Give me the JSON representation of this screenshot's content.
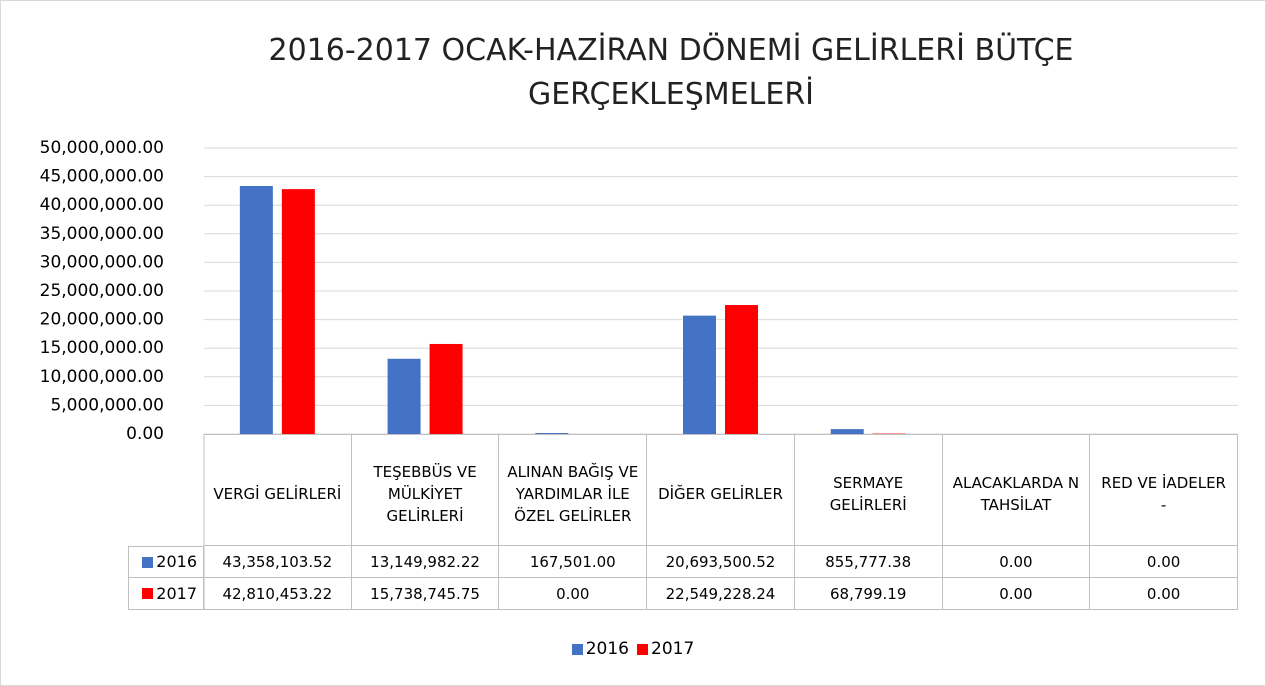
{
  "chart_data": {
    "type": "bar",
    "title": "2016-2017  OCAK-HAZİRAN DÖNEMİ GELİRLERİ BÜTÇE GERÇEKLEŞMELERİ",
    "categories": [
      "VERGİ GELİRLERİ",
      "TEŞEBBÜS VE MÜLKİYET GELİRLERİ",
      "ALINAN BAĞIŞ VE YARDIMLAR İLE ÖZEL GELİRLER",
      "DİĞER GELİRLER",
      "SERMAYE GELİRLERİ",
      "ALACAKLARDA N TAHSİLAT",
      "RED VE İADELER -"
    ],
    "series": [
      {
        "name": "2016",
        "color": "#4472c4",
        "values": [
          43358103.52,
          13149982.22,
          167501.0,
          20693500.52,
          855777.38,
          0,
          0
        ],
        "value_labels": [
          "43,358,103.52",
          "13,149,982.22",
          "167,501.00",
          "20,693,500.52",
          "855,777.38",
          "0.00",
          "0.00"
        ]
      },
      {
        "name": "2017",
        "color": "#ff0000",
        "values": [
          42810453.22,
          15738745.75,
          0,
          22549228.24,
          68799.19,
          0,
          0
        ],
        "value_labels": [
          "42,810,453.22",
          "15,738,745.75",
          "0.00",
          "22,549,228.24",
          "68,799.19",
          "0.00",
          "0.00"
        ]
      }
    ],
    "ylim": [
      0,
      50000000
    ],
    "yticks": [
      {
        "value": 0,
        "label": "0.00"
      },
      {
        "value": 5000000,
        "label": "5,000,000.00"
      },
      {
        "value": 10000000,
        "label": "10,000,000.00"
      },
      {
        "value": 15000000,
        "label": "15,000,000.00"
      },
      {
        "value": 20000000,
        "label": "20,000,000.00"
      },
      {
        "value": 25000000,
        "label": "25,000,000.00"
      },
      {
        "value": 30000000,
        "label": "30,000,000.00"
      },
      {
        "value": 35000000,
        "label": "35,000,000.00"
      },
      {
        "value": 40000000,
        "label": "40,000,000.00"
      },
      {
        "value": 45000000,
        "label": "45,000,000.00"
      },
      {
        "value": 50000000,
        "label": "50,000,000.00"
      }
    ],
    "grid": true,
    "legend": "bottom"
  }
}
